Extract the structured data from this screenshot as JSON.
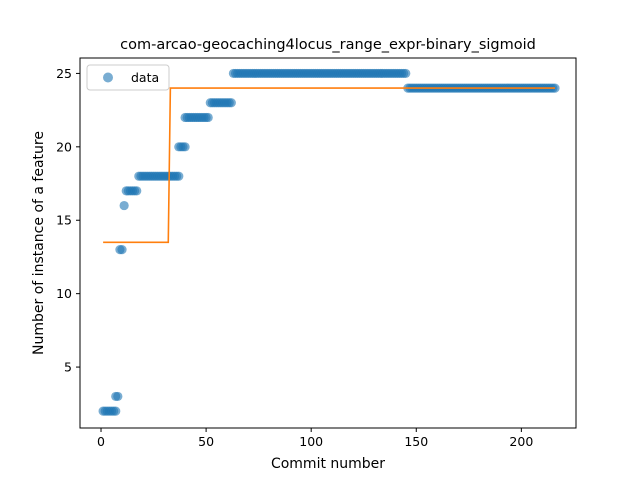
{
  "chart_data": {
    "type": "scatter",
    "title": "com-arcao-geocaching4locus_range_expr-binary_sigmoid",
    "xlabel": "Commit number",
    "ylabel": "Number of instance of a feature",
    "xlim": [
      -10,
      226
    ],
    "ylim": [
      0.85,
      26.05
    ],
    "xticks": [
      0,
      50,
      100,
      150,
      200
    ],
    "yticks": [
      5,
      10,
      15,
      20,
      25
    ],
    "grid": false,
    "legend": {
      "position": "top-left",
      "entries": [
        "data"
      ]
    },
    "colors": {
      "data": "#1f77b4",
      "fit": "#ff7f0e"
    },
    "data_runs": [
      {
        "x_start": 1,
        "x_end": 7,
        "y": 2
      },
      {
        "x_start": 7,
        "x_end": 8,
        "y": 3
      },
      {
        "x_start": 9,
        "x_end": 10,
        "y": 13
      },
      {
        "x_start": 11,
        "x_end": 11,
        "y": 16
      },
      {
        "x_start": 12,
        "x_end": 17,
        "y": 17
      },
      {
        "x_start": 18,
        "x_end": 37,
        "y": 18
      },
      {
        "x_start": 37,
        "x_end": 40,
        "y": 20
      },
      {
        "x_start": 40,
        "x_end": 51,
        "y": 22
      },
      {
        "x_start": 52,
        "x_end": 62,
        "y": 23
      },
      {
        "x_start": 63,
        "x_end": 145,
        "y": 25
      },
      {
        "x_start": 146,
        "x_end": 216,
        "y": 24
      }
    ],
    "fit_line": {
      "x": [
        1,
        32,
        33,
        216
      ],
      "y": [
        13.5,
        13.5,
        24,
        24
      ]
    }
  }
}
